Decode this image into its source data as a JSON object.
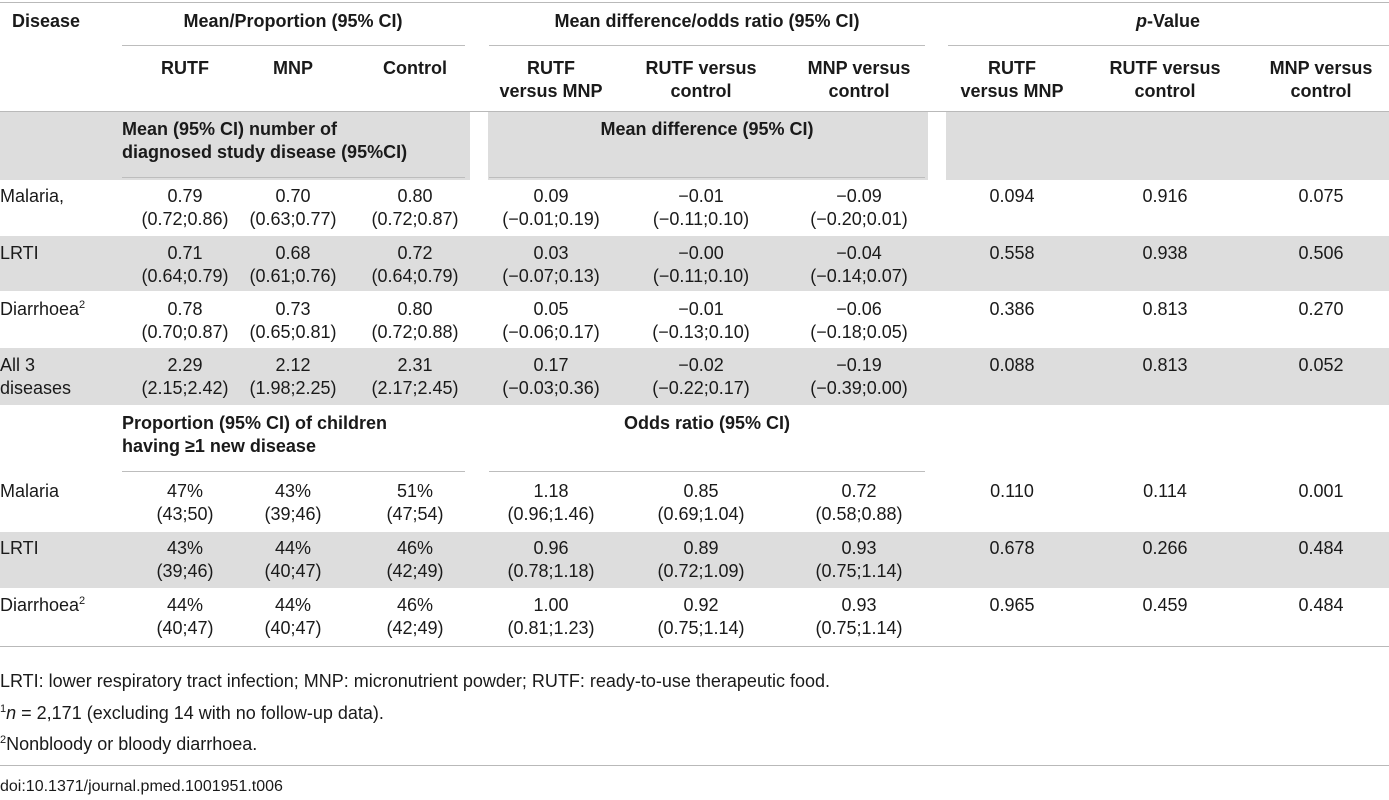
{
  "table": {
    "headers": {
      "disease": "Disease",
      "group_mean": "Mean/Proportion (95% CI)",
      "group_diff": "Mean difference/odds ratio (95% CI)",
      "group_p_italic": "p",
      "group_p_rest": "-Value",
      "cols": [
        [
          "RUTF"
        ],
        [
          "MNP"
        ],
        [
          "Control"
        ],
        [
          "RUTF",
          "versus MNP"
        ],
        [
          "RUTF versus",
          "control"
        ],
        [
          "MNP versus",
          "control"
        ],
        [
          "RUTF",
          "versus MNP"
        ],
        [
          "RUTF versus",
          "control"
        ],
        [
          "MNP versus",
          "control"
        ]
      ]
    },
    "sections": [
      {
        "left_title": [
          "Mean (95% CI) number of",
          "diagnosed study disease (95%CI)"
        ],
        "right_title": "Mean difference (95% CI)",
        "rows": [
          {
            "disease": [
              "Malaria,"
            ],
            "sup": "",
            "values": [
              [
                "0.79",
                "(0.72;0.86)"
              ],
              [
                "0.70",
                "(0.63;0.77)"
              ],
              [
                "0.80",
                "(0.72;0.87)"
              ],
              [
                "0.09",
                "(−0.01;0.19)"
              ],
              [
                "−0.01",
                "(−0.11;0.10)"
              ],
              [
                "−0.09",
                "(−0.20;0.01)"
              ]
            ],
            "p": [
              "0.094",
              "0.916",
              "0.075"
            ]
          },
          {
            "disease": [
              "LRTI"
            ],
            "sup": "",
            "values": [
              [
                "0.71",
                "(0.64;0.79)"
              ],
              [
                "0.68",
                "(0.61;0.76)"
              ],
              [
                "0.72",
                "(0.64;0.79)"
              ],
              [
                "0.03",
                "(−0.07;0.13)"
              ],
              [
                "−0.00",
                "(−0.11;0.10)"
              ],
              [
                "−0.04",
                "(−0.14;0.07)"
              ]
            ],
            "p": [
              "0.558",
              "0.938",
              "0.506"
            ]
          },
          {
            "disease": [
              "Diarrhoea"
            ],
            "sup": "2",
            "values": [
              [
                "0.78",
                "(0.70;0.87)"
              ],
              [
                "0.73",
                "(0.65;0.81)"
              ],
              [
                "0.80",
                "(0.72;0.88)"
              ],
              [
                "0.05",
                "(−0.06;0.17)"
              ],
              [
                "−0.01",
                "(−0.13;0.10)"
              ],
              [
                "−0.06",
                "(−0.18;0.05)"
              ]
            ],
            "p": [
              "0.386",
              "0.813",
              "0.270"
            ]
          },
          {
            "disease": [
              "All 3",
              "diseases"
            ],
            "sup": "",
            "values": [
              [
                "2.29",
                "(2.15;2.42)"
              ],
              [
                "2.12",
                "(1.98;2.25)"
              ],
              [
                "2.31",
                "(2.17;2.45)"
              ],
              [
                "0.17",
                "(−0.03;0.36)"
              ],
              [
                "−0.02",
                "(−0.22;0.17)"
              ],
              [
                "−0.19",
                "(−0.39;0.00)"
              ]
            ],
            "p": [
              "0.088",
              "0.813",
              "0.052"
            ]
          }
        ]
      },
      {
        "left_title": [
          "Proportion (95% CI) of children",
          "having ≥1 new disease"
        ],
        "right_title": "Odds ratio (95% CI)",
        "rows": [
          {
            "disease": [
              "Malaria"
            ],
            "sup": "",
            "values": [
              [
                "47%",
                "(43;50)"
              ],
              [
                "43%",
                "(39;46)"
              ],
              [
                "51%",
                "(47;54)"
              ],
              [
                "1.18",
                "(0.96;1.46)"
              ],
              [
                "0.85",
                "(0.69;1.04)"
              ],
              [
                "0.72",
                "(0.58;0.88)"
              ]
            ],
            "p": [
              "0.110",
              "0.114",
              "0.001"
            ]
          },
          {
            "disease": [
              "LRTI"
            ],
            "sup": "",
            "values": [
              [
                "43%",
                "(39;46)"
              ],
              [
                "44%",
                "(40;47)"
              ],
              [
                "46%",
                "(42;49)"
              ],
              [
                "0.96",
                "(0.78;1.18)"
              ],
              [
                "0.89",
                "(0.72;1.09)"
              ],
              [
                "0.93",
                "(0.75;1.14)"
              ]
            ],
            "p": [
              "0.678",
              "0.266",
              "0.484"
            ]
          },
          {
            "disease": [
              "Diarrhoea"
            ],
            "sup": "2",
            "values": [
              [
                "44%",
                "(40;47)"
              ],
              [
                "44%",
                "(40;47)"
              ],
              [
                "46%",
                "(42;49)"
              ],
              [
                "1.00",
                "(0.81;1.23)"
              ],
              [
                "0.92",
                "(0.75;1.14)"
              ],
              [
                "0.93",
                "(0.75;1.14)"
              ]
            ],
            "p": [
              "0.965",
              "0.459",
              "0.484"
            ]
          }
        ]
      }
    ]
  },
  "footnotes": {
    "abbrev": "LRTI: lower respiratory tract infection; MNP: micronutrient powder; RUTF: ready-to-use therapeutic food.",
    "note1_sup": "1",
    "note1_italic": "n",
    "note1_rest": " = 2,171 (excluding 14 with no follow-up data).",
    "note2_sup": "2",
    "note2_text": "Nonbloody or bloody diarrhoea."
  },
  "doi": "doi:10.1371/journal.pmed.1001951.t006"
}
